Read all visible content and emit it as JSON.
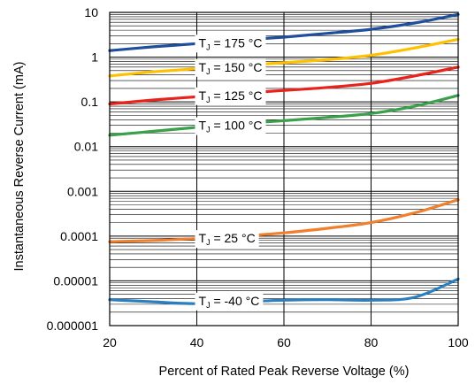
{
  "chart_data": {
    "type": "line",
    "title": "",
    "xlabel": "Percent of Rated Peak Reverse Voltage (%)",
    "ylabel": "Instantaneous Reverse Current (mA)",
    "xlim": [
      20,
      100
    ],
    "ylim": [
      1e-06,
      10
    ],
    "y_scale": "log",
    "grid": true,
    "x_ticks": [
      "20",
      "40",
      "60",
      "80",
      "100"
    ],
    "y_ticks": [
      "0.000001",
      "0.00001",
      "0.0001",
      "0.001",
      "0.01",
      "0.1",
      "1",
      "10"
    ],
    "series": [
      {
        "name": "175 °C",
        "color": "#1f4e9c",
        "x": [
          20,
          30,
          40,
          50,
          60,
          70,
          80,
          90,
          100
        ],
        "y": [
          1.4,
          1.7,
          2.0,
          2.4,
          2.8,
          3.4,
          4.2,
          5.8,
          9.0
        ]
      },
      {
        "name": "150 °C",
        "color": "#ffc000",
        "x": [
          20,
          30,
          40,
          50,
          60,
          70,
          80,
          90,
          100
        ],
        "y": [
          0.38,
          0.47,
          0.55,
          0.65,
          0.75,
          0.88,
          1.1,
          1.6,
          2.5
        ]
      },
      {
        "name": "125 °C",
        "color": "#e8231c",
        "x": [
          20,
          30,
          40,
          50,
          60,
          70,
          80,
          90,
          100
        ],
        "y": [
          0.09,
          0.11,
          0.13,
          0.155,
          0.18,
          0.21,
          0.26,
          0.38,
          0.6
        ]
      },
      {
        "name": "100 °C",
        "color": "#3aa04a",
        "x": [
          20,
          30,
          40,
          50,
          60,
          70,
          80,
          90,
          100
        ],
        "y": [
          0.018,
          0.022,
          0.027,
          0.033,
          0.038,
          0.045,
          0.055,
          0.08,
          0.14
        ]
      },
      {
        "name": "25 °C",
        "color": "#f07f2e",
        "x": [
          20,
          30,
          40,
          50,
          60,
          70,
          80,
          90,
          100
        ],
        "y": [
          7.5e-05,
          8e-05,
          8.8e-05,
          0.0001,
          0.000118,
          0.00015,
          0.0002,
          0.00033,
          0.00065
        ]
      },
      {
        "name": "-40 °C",
        "color": "#2a7fc0",
        "x": [
          20,
          30,
          40,
          50,
          60,
          70,
          80,
          90,
          100
        ],
        "y": [
          3.8e-06,
          3.4e-06,
          3.1e-06,
          3.4e-06,
          3.7e-06,
          3.8e-06,
          3.7e-06,
          4.3e-06,
          1.1e-05
        ]
      }
    ],
    "curve_labels": [
      {
        "series": "175 °C",
        "prefix": "T",
        "sub": "J",
        "text": " = 175 °C",
        "x": 40,
        "y": 2.1
      },
      {
        "series": "150 °C",
        "prefix": "T",
        "sub": "J",
        "text": " = 150 °C",
        "x": 40,
        "y": 0.6
      },
      {
        "series": "125 °C",
        "prefix": "T",
        "sub": "J",
        "text": " = 125 °C",
        "x": 40,
        "y": 0.14
      },
      {
        "series": "100 °C",
        "prefix": "T",
        "sub": "J",
        "text": " = 100 °C",
        "x": 40,
        "y": 0.03
      },
      {
        "series": "25 °C",
        "prefix": "T",
        "sub": "J",
        "text": " = 25 °C",
        "x": 40,
        "y": 9e-05
      },
      {
        "series": "-40 °C",
        "prefix": "T",
        "sub": "J",
        "text": " = -40 °C",
        "x": 40,
        "y": 3.6e-06
      }
    ]
  }
}
